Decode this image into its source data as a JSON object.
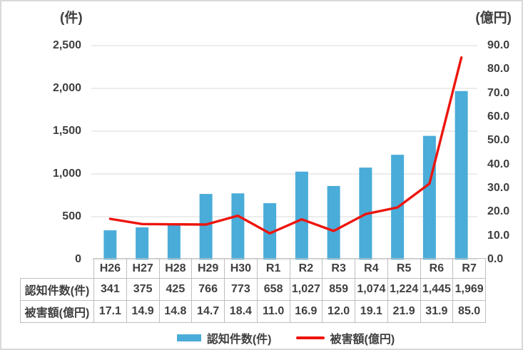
{
  "chart_data": {
    "type": "bar+line",
    "title": "",
    "categories": [
      "H26",
      "H27",
      "H28",
      "H29",
      "H30",
      "R1",
      "R2",
      "R3",
      "R4",
      "R5",
      "R6",
      "R7"
    ],
    "series": [
      {
        "name": "認知件数(件)",
        "type": "bar",
        "axis": "left",
        "color": "#4aacd8",
        "values": [
          341,
          375,
          425,
          766,
          773,
          658,
          1027,
          859,
          1074,
          1224,
          1445,
          1969
        ]
      },
      {
        "name": "被害額(億円)",
        "type": "line",
        "axis": "right",
        "color": "#ed150d",
        "values": [
          17.1,
          14.9,
          14.8,
          14.7,
          18.4,
          11.0,
          16.9,
          12.0,
          19.1,
          21.9,
          31.9,
          85.0
        ]
      }
    ],
    "left_axis": {
      "title": "(件)",
      "min": 0,
      "max": 2500,
      "step": 500,
      "tick_labels": [
        "0",
        "500",
        "1,000",
        "1,500",
        "2,000",
        "2,500"
      ]
    },
    "right_axis": {
      "title": "(億円)",
      "min": 0,
      "max": 90,
      "step": 10,
      "tick_labels": [
        "0.0",
        "10.0",
        "20.0",
        "30.0",
        "40.0",
        "50.0",
        "60.0",
        "70.0",
        "80.0",
        "90.0"
      ]
    },
    "grid": "horizontal",
    "gridline_color": "#d9d9d9",
    "legend_position": "bottom"
  },
  "table": {
    "header": [
      "H26",
      "H27",
      "H28",
      "H29",
      "H30",
      "R1",
      "R2",
      "R3",
      "R4",
      "R5",
      "R6",
      "R7"
    ],
    "rows": [
      {
        "label": "認知件数(件)",
        "values": [
          "341",
          "375",
          "425",
          "766",
          "773",
          "658",
          "1,027",
          "859",
          "1,074",
          "1,224",
          "1,445",
          "1,969"
        ]
      },
      {
        "label": "被害額(億円)",
        "values": [
          "17.1",
          "14.9",
          "14.8",
          "14.7",
          "18.4",
          "11.0",
          "16.9",
          "12.0",
          "19.1",
          "21.9",
          "31.9",
          "85.0"
        ]
      }
    ]
  },
  "legend": {
    "items": [
      {
        "label": "認知件数(件)",
        "swatch": "bar",
        "color": "#4aacd8"
      },
      {
        "label": "被害額(億円)",
        "swatch": "line",
        "color": "#ed150d"
      }
    ]
  }
}
